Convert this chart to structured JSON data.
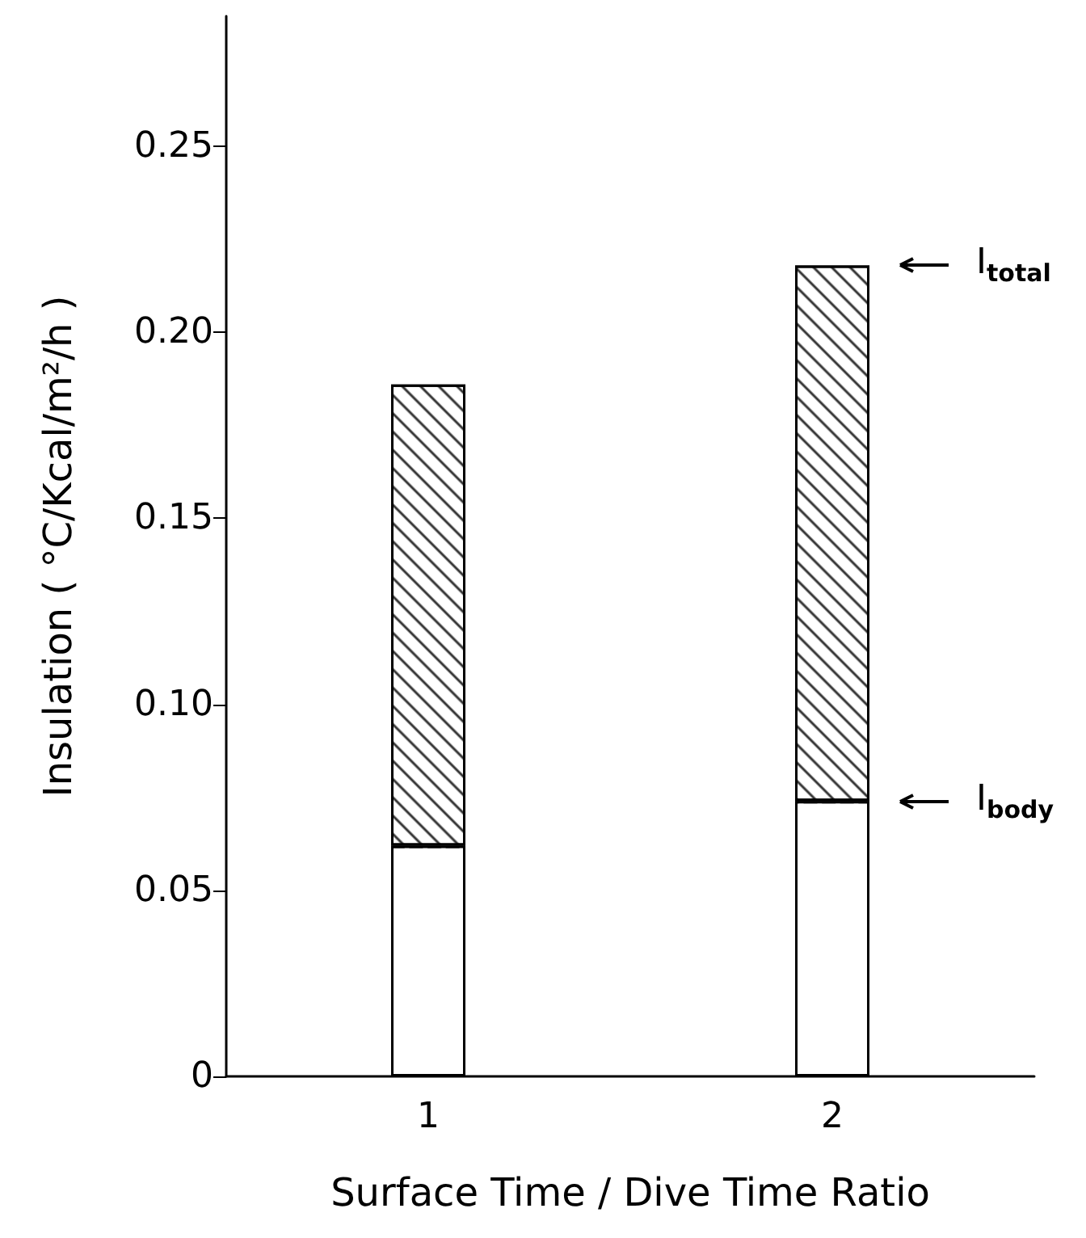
{
  "chart_data": {
    "type": "bar",
    "xlabel": "Surface Time / Dive Time Ratio",
    "ylabel": "Insulation ( °C/Kcal/m²/h )",
    "categories": [
      "1",
      "2"
    ],
    "stacked": true,
    "series": [
      {
        "color": "#ffffff",
        "values": [
          0.062,
          0.074
        ]
      },
      {
        "color": "#000000",
        "values": [
          0.124,
          0.144
        ]
      }
    ],
    "ylim": [
      0,
      0.285
    ],
    "yticks": [
      0,
      0.05,
      {
        "value": 0.1,
        "label": "0.10"
      },
      0.15,
      {
        "value": 0.2,
        "label": "0.20"
      },
      0.25
    ],
    "annotations": [
      "I$_{total}$",
      "I$_{body}$"
    ],
    "grid": false
  }
}
